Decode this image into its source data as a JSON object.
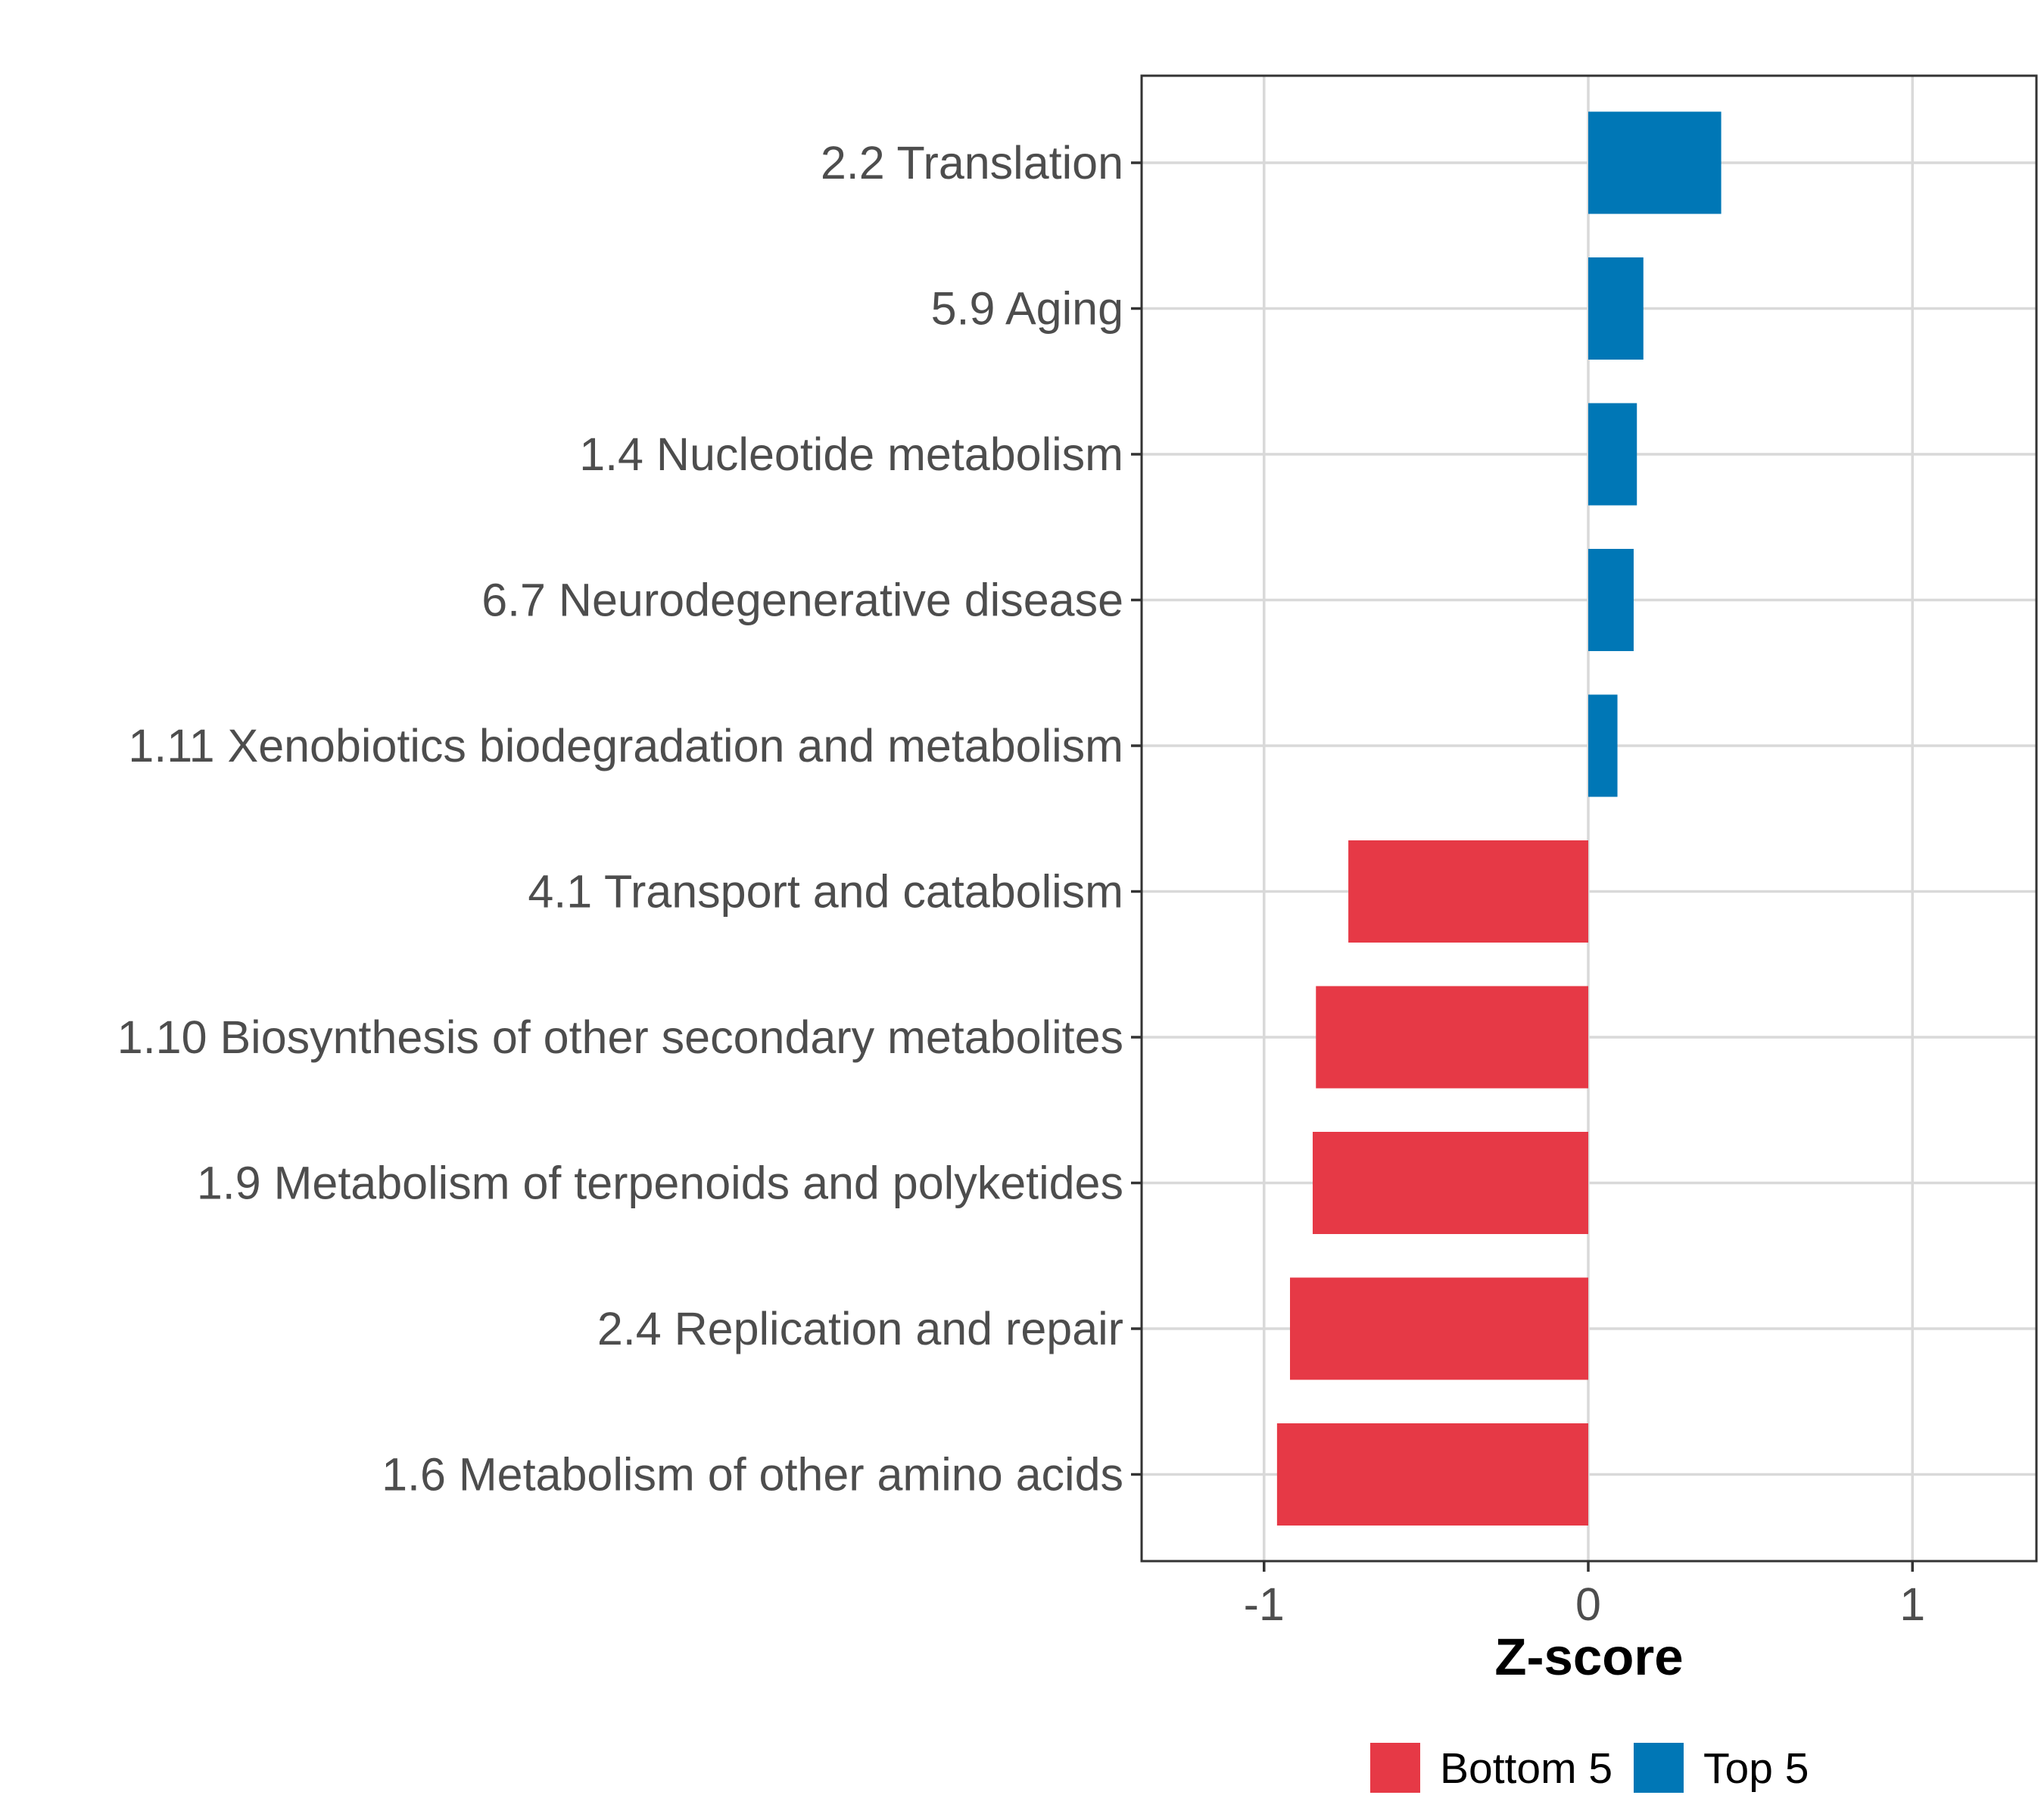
{
  "chart_data": {
    "type": "bar",
    "orientation": "horizontal",
    "title": "",
    "xlabel": "Z-score",
    "ylabel": "",
    "xlim": [
      -1.38,
      1.38
    ],
    "xticks": [
      -1,
      0,
      1
    ],
    "xtick_labels": [
      "-1",
      "0",
      "1"
    ],
    "grid": true,
    "legend_position": "bottom",
    "categories": [
      "2.2 Translation",
      "5.9 Aging",
      "1.4 Nucleotide metabolism",
      "6.7 Neurodegenerative disease",
      "1.11 Xenobiotics biodegradation and metabolism",
      "4.1 Transport and catabolism",
      "1.10 Biosynthesis of other secondary metabolites",
      "1.9 Metabolism of terpenoids and polyketides",
      "2.4 Replication and repair",
      "1.6 Metabolism of other amino acids"
    ],
    "values": [
      0.41,
      0.17,
      0.15,
      0.14,
      0.09,
      -0.74,
      -0.84,
      -0.85,
      -0.92,
      -0.96
    ],
    "groups": [
      "Top 5",
      "Top 5",
      "Top 5",
      "Top 5",
      "Top 5",
      "Bottom 5",
      "Bottom 5",
      "Bottom 5",
      "Bottom 5",
      "Bottom 5"
    ],
    "legend": [
      {
        "label": "Bottom 5",
        "color": "#e63946"
      },
      {
        "label": "Top 5",
        "color": "#0077b6"
      }
    ]
  }
}
